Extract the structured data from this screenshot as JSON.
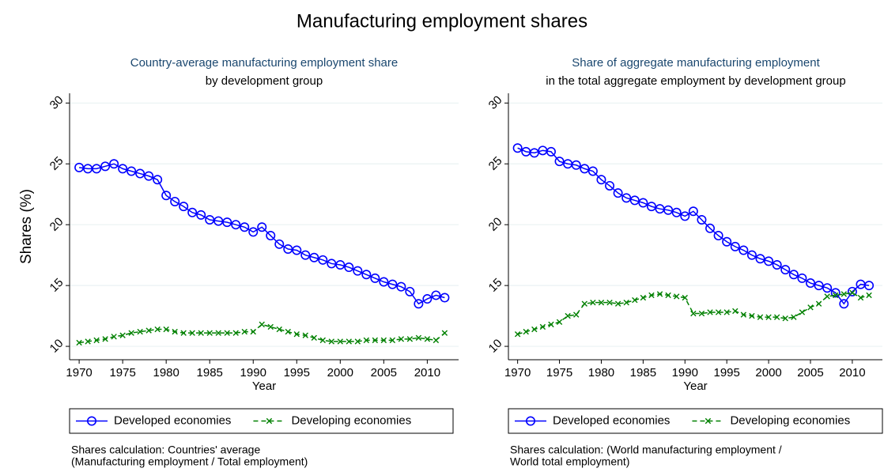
{
  "title": "Manufacturing employment shares",
  "chart_data": [
    {
      "type": "line",
      "title": "Country-average manufacturing employment share",
      "subtitle": "by development group",
      "x_label": "Year",
      "y_label": "Shares (%)",
      "x": [
        1970,
        1971,
        1972,
        1973,
        1974,
        1975,
        1976,
        1977,
        1978,
        1979,
        1980,
        1981,
        1982,
        1983,
        1984,
        1985,
        1986,
        1987,
        1988,
        1989,
        1990,
        1991,
        1992,
        1993,
        1994,
        1995,
        1996,
        1997,
        1998,
        1999,
        2000,
        2001,
        2002,
        2003,
        2004,
        2005,
        2006,
        2007,
        2008,
        2009,
        2010,
        2011,
        2012
      ],
      "series": [
        {
          "name": "Developed economies",
          "color": "#0000ff",
          "marker": "circle",
          "line_style": "solid",
          "values": [
            24.7,
            24.6,
            24.6,
            24.8,
            25.0,
            24.6,
            24.4,
            24.2,
            24.0,
            23.7,
            22.4,
            21.9,
            21.5,
            21.0,
            20.8,
            20.4,
            20.3,
            20.2,
            20.0,
            19.8,
            19.4,
            19.8,
            19.1,
            18.4,
            18.0,
            17.9,
            17.5,
            17.3,
            17.1,
            16.8,
            16.7,
            16.5,
            16.2,
            15.9,
            15.6,
            15.3,
            15.1,
            14.9,
            14.5,
            13.5,
            13.9,
            14.2,
            14.0
          ]
        },
        {
          "name": "Developing economies",
          "color": "#008000",
          "marker": "x",
          "line_style": "dashed",
          "values": [
            10.3,
            10.4,
            10.5,
            10.6,
            10.8,
            10.9,
            11.1,
            11.2,
            11.3,
            11.4,
            11.4,
            11.2,
            11.1,
            11.1,
            11.1,
            11.1,
            11.1,
            11.1,
            11.1,
            11.2,
            11.2,
            11.8,
            11.6,
            11.4,
            11.2,
            11.0,
            10.9,
            10.7,
            10.5,
            10.4,
            10.4,
            10.4,
            10.4,
            10.5,
            10.5,
            10.5,
            10.5,
            10.6,
            10.6,
            10.7,
            10.6,
            10.5,
            11.1
          ]
        }
      ],
      "xlim": [
        1968.9,
        2013.6
      ],
      "xticks": [
        1970,
        1975,
        1980,
        1985,
        1990,
        1995,
        2000,
        2005,
        2010
      ],
      "ylim": [
        8.9,
        30.8
      ],
      "yticks": [
        10,
        15,
        20,
        25,
        30
      ],
      "grid": true,
      "legend": "bottom",
      "note": [
        "Shares calculation: Countries' average",
        "(Manufacturing employment / Total employment)"
      ]
    },
    {
      "type": "line",
      "title": "Share of aggregate manufacturing employment",
      "subtitle": "in the total aggregate employment by development group",
      "x_label": "Year",
      "x": [
        1970,
        1971,
        1972,
        1973,
        1974,
        1975,
        1976,
        1977,
        1978,
        1979,
        1980,
        1981,
        1982,
        1983,
        1984,
        1985,
        1986,
        1987,
        1988,
        1989,
        1990,
        1991,
        1992,
        1993,
        1994,
        1995,
        1996,
        1997,
        1998,
        1999,
        2000,
        2001,
        2002,
        2003,
        2004,
        2005,
        2006,
        2007,
        2008,
        2009,
        2010,
        2011,
        2012
      ],
      "series": [
        {
          "name": "Developed economies",
          "color": "#0000ff",
          "marker": "circle",
          "line_style": "solid",
          "values": [
            26.3,
            26.0,
            25.9,
            26.1,
            26.0,
            25.2,
            25.0,
            24.9,
            24.6,
            24.4,
            23.7,
            23.2,
            22.6,
            22.2,
            22.0,
            21.8,
            21.5,
            21.3,
            21.2,
            21.0,
            20.7,
            21.1,
            20.4,
            19.7,
            19.1,
            18.6,
            18.2,
            17.9,
            17.5,
            17.2,
            17.0,
            16.7,
            16.3,
            15.9,
            15.6,
            15.2,
            15.0,
            14.8,
            14.4,
            13.5,
            14.5,
            15.1,
            15.0
          ]
        },
        {
          "name": "Developing economies",
          "color": "#008000",
          "marker": "x",
          "line_style": "dashed",
          "values": [
            11.0,
            11.2,
            11.4,
            11.6,
            11.8,
            12.0,
            12.5,
            12.6,
            13.5,
            13.6,
            13.6,
            13.6,
            13.5,
            13.6,
            13.8,
            14.0,
            14.2,
            14.3,
            14.2,
            14.1,
            14.0,
            12.7,
            12.7,
            12.8,
            12.8,
            12.8,
            12.9,
            12.6,
            12.5,
            12.4,
            12.4,
            12.4,
            12.3,
            12.4,
            12.8,
            13.2,
            13.5,
            14.1,
            14.2,
            14.3,
            14.4,
            14.0,
            14.2
          ]
        }
      ],
      "xlim": [
        1968.9,
        2013.6
      ],
      "xticks": [
        1970,
        1975,
        1980,
        1985,
        1990,
        1995,
        2000,
        2005,
        2010
      ],
      "ylim": [
        8.9,
        30.8
      ],
      "yticks": [
        10,
        15,
        20,
        25,
        30
      ],
      "grid": true,
      "legend": "bottom",
      "note": [
        "Shares calculation: (World manufacturing employment /",
        "World total employment)"
      ]
    }
  ]
}
